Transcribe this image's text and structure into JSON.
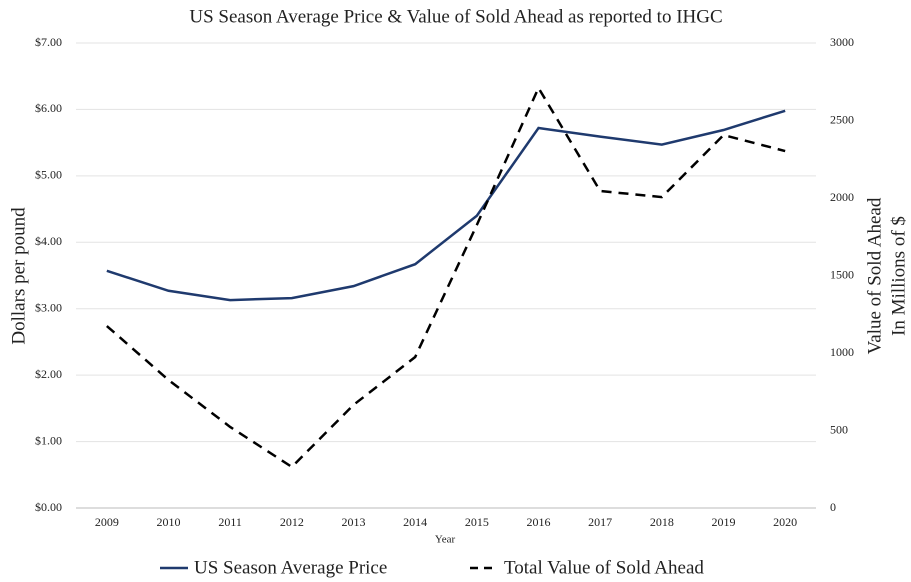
{
  "chart_data": {
    "type": "line",
    "title": "US Season Average Price & Value of Sold Ahead as reported to IHGC",
    "xlabel": "Year",
    "ylabel": "Dollars per pound",
    "y2label": [
      "Value of Sold Ahead",
      "In Millions of $"
    ],
    "categories": [
      "2009",
      "2010",
      "2011",
      "2012",
      "2013",
      "2014",
      "2015",
      "2016",
      "2017",
      "2018",
      "2019",
      "2020"
    ],
    "series": [
      {
        "name": "US Season Average Price",
        "color": "#1f3a6e",
        "dash": false,
        "values": [
          3.57,
          3.27,
          3.13,
          3.16,
          3.34,
          3.67,
          4.4,
          5.72,
          5.59,
          5.47,
          5.69,
          5.98
        ]
      },
      {
        "name": "Total Value of Sold Ahead",
        "color": "#000000",
        "dash": true,
        "axis": "y2",
        "values": [
          1174,
          826,
          523,
          265,
          665,
          974,
          1826,
          2710,
          2045,
          2006,
          2406,
          2303
        ]
      }
    ],
    "ylim": [
      0,
      7
    ],
    "yticks": [
      {
        "value": 0,
        "label": "$0.00"
      },
      {
        "value": 1,
        "label": "$1.00"
      },
      {
        "value": 2,
        "label": "$2.00"
      },
      {
        "value": 3,
        "label": "$3.00"
      },
      {
        "value": 4,
        "label": "$4.00"
      },
      {
        "value": 5,
        "label": "$5.00"
      },
      {
        "value": 6,
        "label": "$6.00"
      },
      {
        "value": 7,
        "label": "$7.00"
      }
    ],
    "y2lim": [
      0,
      3000
    ],
    "y2ticks": [
      0,
      500,
      1000,
      1500,
      2000,
      2500,
      3000
    ],
    "grid": true,
    "legend": "bottom"
  }
}
